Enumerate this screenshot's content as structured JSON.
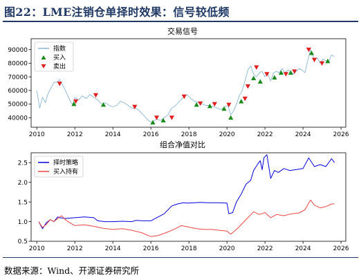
{
  "figure": {
    "title": "图22：LME注销仓单择时效果：信号较低频",
    "source": "数据来源：Wind、开源证券研究所",
    "colors": {
      "title": "#1f3864",
      "rule": "#1f3864"
    }
  },
  "chart_data": [
    {
      "type": "line",
      "title": "交易信号",
      "xlabel": "",
      "ylabel": "",
      "xlim": [
        2009.7,
        2026.25
      ],
      "ylim": [
        33000,
        98000
      ],
      "xticks": [
        2010,
        2012,
        2014,
        2016,
        2018,
        2020,
        2022,
        2024,
        2026
      ],
      "yticks": [
        40000,
        50000,
        60000,
        70000,
        80000,
        90000
      ],
      "grid": false,
      "legend_position": "top-left",
      "series": [
        {
          "name": "指数",
          "kind": "line",
          "color": "#8ab6d6",
          "x": [
            2010.0,
            2010.15,
            2010.3,
            2010.45,
            2010.6,
            2010.75,
            2010.9,
            2011.05,
            2011.2,
            2011.35,
            2011.5,
            2011.6,
            2011.7,
            2011.8,
            2011.9,
            2012.0,
            2012.2,
            2012.4,
            2012.6,
            2012.8,
            2013.0,
            2013.2,
            2013.4,
            2013.6,
            2013.8,
            2014.0,
            2014.2,
            2014.4,
            2014.6,
            2014.8,
            2015.0,
            2015.2,
            2015.4,
            2015.6,
            2015.8,
            2015.95,
            2016.1,
            2016.3,
            2016.5,
            2016.7,
            2016.9,
            2017.1,
            2017.3,
            2017.5,
            2017.7,
            2017.9,
            2018.1,
            2018.3,
            2018.5,
            2018.7,
            2018.9,
            2019.1,
            2019.3,
            2019.5,
            2019.7,
            2019.9,
            2020.05,
            2020.2,
            2020.35,
            2020.5,
            2020.65,
            2020.8,
            2020.95,
            2021.1,
            2021.25,
            2021.4,
            2021.55,
            2021.7,
            2021.85,
            2022.0,
            2022.15,
            2022.3,
            2022.45,
            2022.6,
            2022.75,
            2022.9,
            2023.05,
            2023.2,
            2023.35,
            2023.5,
            2023.65,
            2023.8,
            2023.95,
            2024.1,
            2024.25,
            2024.4,
            2024.5,
            2024.6,
            2024.75,
            2024.9,
            2025.05,
            2025.2,
            2025.35,
            2025.5,
            2025.65
          ],
          "values": [
            60000,
            47000,
            55000,
            51000,
            58000,
            62000,
            66000,
            66000,
            68000,
            64000,
            60000,
            57000,
            54000,
            51000,
            50000,
            55000,
            53000,
            56000,
            54000,
            57000,
            55000,
            53000,
            50000,
            51000,
            49000,
            48000,
            49000,
            52000,
            51000,
            49000,
            47000,
            47000,
            45000,
            42000,
            39000,
            37000,
            37000,
            39000,
            38000,
            40000,
            42000,
            47000,
            49000,
            52000,
            55000,
            57000,
            54000,
            52000,
            51000,
            50000,
            49000,
            49000,
            48000,
            47000,
            46000,
            48000,
            49000,
            42000,
            45000,
            50000,
            56000,
            60000,
            67000,
            75000,
            78000,
            72000,
            70000,
            73000,
            74000,
            70000,
            72000,
            67000,
            73000,
            74000,
            73000,
            76000,
            73000,
            75000,
            74000,
            72000,
            74000,
            76000,
            75000,
            73000,
            82000,
            90000,
            87000,
            82000,
            84000,
            80000,
            83000,
            82000,
            81000,
            86000,
            85000
          ]
        },
        {
          "name": "买入",
          "kind": "marker",
          "marker": "triangle-up",
          "color": "#1a8a1a",
          "x": [
            2011.95,
            2013.5,
            2016.1,
            2016.65,
            2018.4,
            2019.1,
            2019.85,
            2020.2,
            2020.75,
            2021.4,
            2021.75,
            2022.5,
            2022.85,
            2023.35,
            2024.45,
            2025.3
          ],
          "values": [
            50000,
            49500,
            36500,
            38000,
            49500,
            48500,
            46500,
            40000,
            52000,
            69000,
            66500,
            69500,
            73000,
            73000,
            87500,
            81500
          ]
        },
        {
          "name": "卖出",
          "kind": "marker",
          "marker": "triangle-down",
          "color": "#e02020",
          "x": [
            2011.2,
            2012.05,
            2013.1,
            2015.15,
            2016.3,
            2017.1,
            2017.75,
            2018.6,
            2019.35,
            2020.1,
            2020.95,
            2021.1,
            2021.55,
            2022.1,
            2023.1,
            2023.55,
            2024.3,
            2024.6,
            2025.0
          ],
          "values": [
            65000,
            52000,
            56500,
            48000,
            40000,
            40000,
            55500,
            50500,
            50000,
            49500,
            54000,
            63000,
            77000,
            72000,
            72000,
            74000,
            90000,
            82500,
            80000
          ]
        }
      ]
    },
    {
      "type": "line",
      "title": "组合净值对比",
      "xlabel": "",
      "ylabel": "",
      "xlim": [
        2009.7,
        2026.25
      ],
      "ylim": [
        0.5,
        2.75
      ],
      "xticks": [
        2010,
        2012,
        2014,
        2016,
        2018,
        2020,
        2022,
        2024,
        2026
      ],
      "yticks": [
        0.5,
        1.0,
        1.5,
        2.0,
        2.5
      ],
      "grid": false,
      "legend_position": "top-left",
      "series": [
        {
          "name": "择时策略",
          "color": "#0000dd",
          "x": [
            2010.1,
            2010.3,
            2010.5,
            2010.7,
            2010.9,
            2011.1,
            2011.2,
            2011.5,
            2012.0,
            2012.5,
            2013.0,
            2013.2,
            2013.6,
            2014.0,
            2014.5,
            2015.0,
            2015.2,
            2015.6,
            2016.0,
            2016.3,
            2016.7,
            2017.1,
            2017.4,
            2017.7,
            2017.9,
            2018.3,
            2018.6,
            2019.0,
            2019.5,
            2020.0,
            2020.1,
            2020.3,
            2020.5,
            2020.75,
            2021.0,
            2021.25,
            2021.4,
            2021.6,
            2021.75,
            2021.85,
            2021.95,
            2022.1,
            2022.3,
            2022.5,
            2022.7,
            2023.0,
            2023.3,
            2023.6,
            2024.0,
            2024.3,
            2024.6,
            2024.9,
            2025.2,
            2025.5,
            2025.65
          ],
          "values": [
            1.0,
            0.82,
            0.97,
            1.05,
            1.0,
            1.12,
            1.1,
            1.08,
            1.1,
            1.12,
            1.1,
            1.02,
            1.0,
            1.0,
            1.01,
            1.0,
            1.03,
            1.02,
            1.02,
            1.1,
            1.2,
            1.4,
            1.45,
            1.48,
            1.47,
            1.48,
            1.49,
            1.48,
            1.48,
            1.47,
            1.2,
            1.23,
            1.5,
            1.7,
            1.95,
            2.05,
            2.3,
            2.45,
            2.55,
            2.32,
            2.63,
            2.7,
            2.1,
            2.3,
            2.25,
            2.35,
            2.3,
            2.32,
            2.35,
            2.62,
            2.4,
            2.45,
            2.4,
            2.6,
            2.5
          ]
        },
        {
          "name": "买入持有",
          "color": "#ee4444",
          "x": [
            2010.1,
            2010.3,
            2010.5,
            2010.7,
            2010.9,
            2011.1,
            2011.3,
            2011.5,
            2011.7,
            2012.0,
            2012.5,
            2013.0,
            2013.5,
            2014.0,
            2014.5,
            2015.0,
            2015.5,
            2016.0,
            2016.4,
            2016.8,
            2017.2,
            2017.6,
            2018.0,
            2018.4,
            2018.8,
            2019.2,
            2019.6,
            2020.0,
            2020.2,
            2020.5,
            2020.8,
            2021.1,
            2021.4,
            2021.7,
            2022.0,
            2022.3,
            2022.6,
            2023.0,
            2023.4,
            2023.8,
            2024.1,
            2024.4,
            2024.6,
            2024.9,
            2025.2,
            2025.5,
            2025.65
          ],
          "values": [
            1.0,
            0.85,
            0.93,
            1.05,
            1.0,
            1.08,
            1.15,
            1.05,
            0.98,
            0.9,
            0.92,
            0.88,
            0.83,
            0.8,
            0.82,
            0.78,
            0.72,
            0.62,
            0.65,
            0.72,
            0.8,
            0.9,
            0.86,
            0.82,
            0.8,
            0.8,
            0.78,
            0.76,
            0.68,
            0.8,
            0.95,
            1.1,
            1.25,
            1.18,
            1.23,
            1.1,
            1.18,
            1.15,
            1.2,
            1.22,
            1.3,
            1.55,
            1.42,
            1.35,
            1.38,
            1.45,
            1.45
          ]
        }
      ]
    }
  ]
}
